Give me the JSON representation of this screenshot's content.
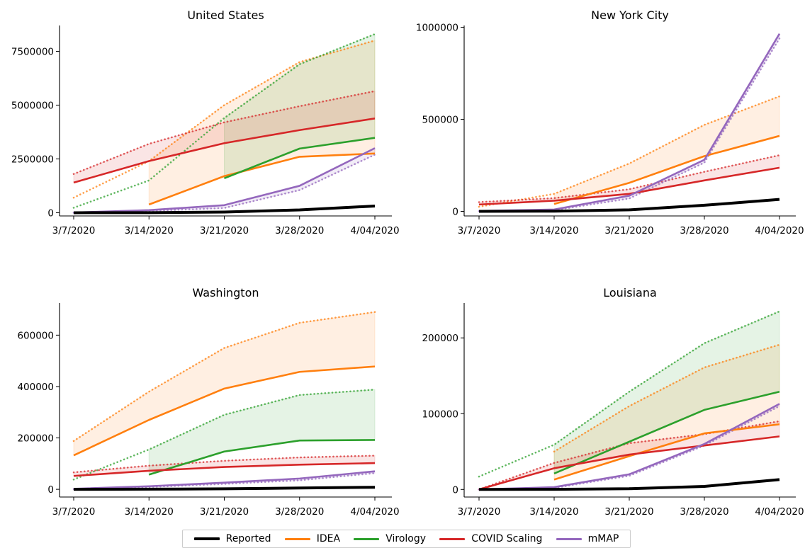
{
  "colors": {
    "Reported": "#000000",
    "IDEA": "#ff7f0e",
    "Virology": "#2ca02c",
    "COVID Scaling": "#d62728",
    "mMAP": "#9467bd"
  },
  "legend": {
    "placement": "bottom-center",
    "items": [
      {
        "label": "Reported",
        "key": "Reported"
      },
      {
        "label": "IDEA",
        "key": "IDEA"
      },
      {
        "label": "Virology",
        "key": "Virology"
      },
      {
        "label": "COVID Scaling",
        "key": "COVID Scaling"
      },
      {
        "label": "mMAP",
        "key": "mMAP"
      }
    ]
  },
  "chart_data": [
    {
      "type": "line",
      "title": "United States",
      "categories": [
        "3/7/2020",
        "3/14/2020",
        "3/21/2020",
        "3/28/2020",
        "4/04/2020"
      ],
      "ylim": [
        -150000,
        8700000
      ],
      "yticks": [
        0,
        2500000,
        5000000,
        7500000
      ],
      "ytick_labels": [
        "0",
        "2500000",
        "5000000",
        "7500000"
      ],
      "series": [
        {
          "name": "Reported",
          "style": "solid",
          "values": [
            0,
            2000,
            30000,
            130000,
            310000
          ]
        },
        {
          "name": "IDEA",
          "style": "solid",
          "values": [
            null,
            380000,
            1700000,
            2600000,
            2750000
          ]
        },
        {
          "name": "IDEA",
          "style": "dotted",
          "values": [
            700000,
            2400000,
            5000000,
            7000000,
            8000000
          ]
        },
        {
          "name": "Virology",
          "style": "solid",
          "values": [
            null,
            null,
            1600000,
            2980000,
            3480000
          ]
        },
        {
          "name": "Virology",
          "style": "dotted",
          "values": [
            230000,
            1500000,
            4400000,
            6900000,
            8300000
          ]
        },
        {
          "name": "COVID Scaling",
          "style": "solid",
          "values": [
            1400000,
            2400000,
            3230000,
            3840000,
            4380000
          ]
        },
        {
          "name": "COVID Scaling",
          "style": "dotted",
          "values": [
            1800000,
            3200000,
            4200000,
            4950000,
            5650000
          ]
        },
        {
          "name": "mMAP",
          "style": "solid",
          "values": [
            10000,
            120000,
            350000,
            1250000,
            3000000
          ]
        },
        {
          "name": "mMAP",
          "style": "dotted",
          "values": [
            5000,
            80000,
            220000,
            1050000,
            2700000
          ]
        }
      ],
      "bands": [
        {
          "key": "IDEA",
          "from": 1,
          "to": 4
        },
        {
          "key": "Virology",
          "from": 2,
          "to": 4
        },
        {
          "key": "COVID Scaling",
          "from": 0,
          "to": 4
        },
        {
          "key": "mMAP",
          "from": 0,
          "to": 4
        }
      ]
    },
    {
      "type": "line",
      "title": "New York City",
      "categories": [
        "3/7/2020",
        "3/14/2020",
        "3/21/2020",
        "3/28/2020",
        "4/04/2020"
      ],
      "ylim": [
        -25000,
        1010000
      ],
      "yticks": [
        0,
        500000,
        1000000
      ],
      "ytick_labels": [
        "0",
        "500000",
        "1000000"
      ],
      "series": [
        {
          "name": "Reported",
          "style": "solid",
          "values": [
            0,
            1000,
            8000,
            33000,
            65000
          ]
        },
        {
          "name": "IDEA",
          "style": "solid",
          "values": [
            null,
            40000,
            155000,
            300000,
            410000
          ]
        },
        {
          "name": "IDEA",
          "style": "dotted",
          "values": [
            25000,
            95000,
            260000,
            470000,
            625000
          ]
        },
        {
          "name": "COVID Scaling",
          "style": "solid",
          "values": [
            37000,
            58000,
            95000,
            168000,
            237000
          ]
        },
        {
          "name": "COVID Scaling",
          "style": "dotted",
          "values": [
            50000,
            72000,
            120000,
            215000,
            305000
          ]
        },
        {
          "name": "mMAP",
          "style": "solid",
          "values": [
            2000,
            10000,
            85000,
            280000,
            965000
          ]
        },
        {
          "name": "mMAP",
          "style": "dotted",
          "values": [
            1000,
            6000,
            70000,
            265000,
            940000
          ]
        }
      ],
      "bands": [
        {
          "key": "IDEA",
          "from": 1,
          "to": 4
        },
        {
          "key": "COVID Scaling",
          "from": 0,
          "to": 4
        },
        {
          "key": "mMAP",
          "from": 0,
          "to": 4
        }
      ]
    },
    {
      "type": "line",
      "title": "Washington",
      "categories": [
        "3/7/2020",
        "3/14/2020",
        "3/21/2020",
        "3/28/2020",
        "4/04/2020"
      ],
      "ylim": [
        -30000,
        725000
      ],
      "yticks": [
        0,
        200000,
        400000,
        600000
      ],
      "ytick_labels": [
        "0",
        "200000",
        "400000",
        "600000"
      ],
      "series": [
        {
          "name": "Reported",
          "style": "solid",
          "values": [
            0,
            500,
            2000,
            5000,
            8000
          ]
        },
        {
          "name": "IDEA",
          "style": "solid",
          "values": [
            132000,
            270000,
            392000,
            457000,
            478000
          ]
        },
        {
          "name": "IDEA",
          "style": "dotted",
          "values": [
            188000,
            380000,
            550000,
            648000,
            690000
          ]
        },
        {
          "name": "Virology",
          "style": "solid",
          "values": [
            null,
            57000,
            147000,
            190000,
            192000
          ]
        },
        {
          "name": "Virology",
          "style": "dotted",
          "values": [
            38000,
            155000,
            290000,
            367000,
            388000
          ]
        },
        {
          "name": "COVID Scaling",
          "style": "solid",
          "values": [
            52000,
            72000,
            87000,
            96000,
            102000
          ]
        },
        {
          "name": "COVID Scaling",
          "style": "dotted",
          "values": [
            66000,
            92000,
            111000,
            124000,
            131000
          ]
        },
        {
          "name": "mMAP",
          "style": "solid",
          "values": [
            2000,
            12000,
            26000,
            42000,
            70000
          ]
        },
        {
          "name": "mMAP",
          "style": "dotted",
          "values": [
            1000,
            9000,
            21000,
            35000,
            63000
          ]
        }
      ],
      "bands": [
        {
          "key": "IDEA",
          "from": 0,
          "to": 4
        },
        {
          "key": "Virology",
          "from": 1,
          "to": 4
        },
        {
          "key": "COVID Scaling",
          "from": 0,
          "to": 4
        },
        {
          "key": "mMAP",
          "from": 0,
          "to": 4
        }
      ]
    },
    {
      "type": "line",
      "title": "Louisiana",
      "categories": [
        "3/7/2020",
        "3/14/2020",
        "3/21/2020",
        "3/28/2020",
        "4/04/2020"
      ],
      "ylim": [
        -10000,
        246000
      ],
      "yticks": [
        0,
        100000,
        200000
      ],
      "ytick_labels": [
        "0",
        "100000",
        "200000"
      ],
      "series": [
        {
          "name": "Reported",
          "style": "solid",
          "values": [
            0,
            200,
            1000,
            4000,
            13000
          ]
        },
        {
          "name": "IDEA",
          "style": "solid",
          "values": [
            null,
            13000,
            44000,
            74000,
            86000
          ]
        },
        {
          "name": "IDEA",
          "style": "dotted",
          "values": [
            null,
            50000,
            110000,
            161000,
            191000
          ]
        },
        {
          "name": "Virology",
          "style": "solid",
          "values": [
            null,
            21000,
            63000,
            105000,
            129000
          ]
        },
        {
          "name": "Virology",
          "style": "dotted",
          "values": [
            17000,
            59000,
            129000,
            193000,
            235000
          ]
        },
        {
          "name": "COVID Scaling",
          "style": "solid",
          "values": [
            0,
            28000,
            46000,
            58000,
            70000
          ]
        },
        {
          "name": "COVID Scaling",
          "style": "dotted",
          "values": [
            0,
            35000,
            61000,
            73000,
            90000
          ]
        },
        {
          "name": "mMAP",
          "style": "solid",
          "values": [
            0,
            3000,
            20000,
            60000,
            113000
          ]
        },
        {
          "name": "mMAP",
          "style": "dotted",
          "values": [
            0,
            2000,
            18000,
            58000,
            110000
          ]
        }
      ],
      "bands": [
        {
          "key": "IDEA",
          "from": 1,
          "to": 4
        },
        {
          "key": "Virology",
          "from": 1,
          "to": 4
        },
        {
          "key": "COVID Scaling",
          "from": 0,
          "to": 4
        },
        {
          "key": "mMAP",
          "from": 0,
          "to": 4
        }
      ]
    }
  ]
}
